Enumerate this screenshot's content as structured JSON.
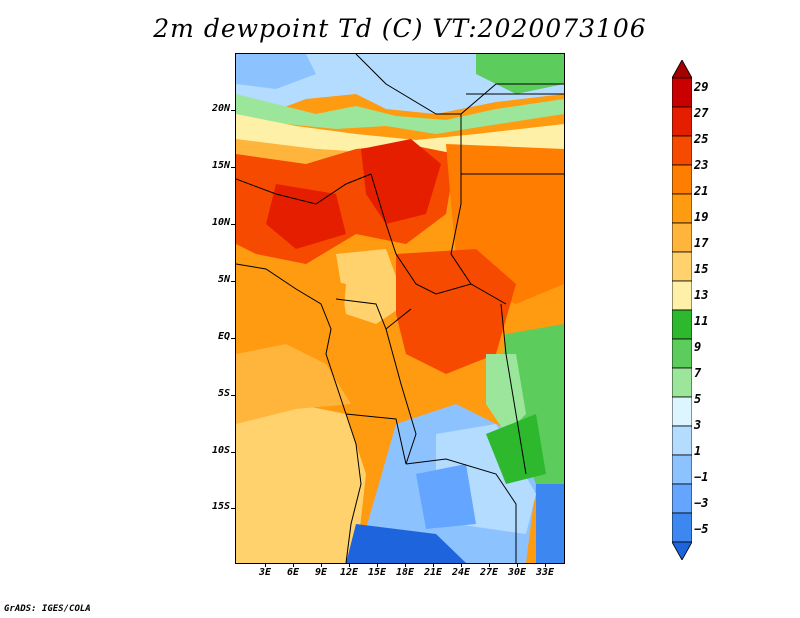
{
  "title": "2m dewpoint Td (C) VT:2020073106",
  "credit": "GrADS: IGES/COLA",
  "map": {
    "region": "Central Africa",
    "lat_labels": [
      "20N",
      "15N",
      "10N",
      "5N",
      "EQ",
      "5S",
      "10S",
      "15S"
    ],
    "lon_labels": [
      "3E",
      "6E",
      "9E",
      "12E",
      "15E",
      "18E",
      "21E",
      "24E",
      "27E",
      "30E",
      "33E"
    ]
  },
  "colorbar": {
    "labels": [
      "29",
      "27",
      "25",
      "23",
      "21",
      "19",
      "17",
      "15",
      "13",
      "11",
      "9",
      "7",
      "5",
      "3",
      "1",
      "−1",
      "−3",
      "−5"
    ],
    "colors_top_to_bottom": [
      "#a50000",
      "#c80000",
      "#e61e00",
      "#f54a00",
      "#ff7d00",
      "#ff9b10",
      "#ffb43c",
      "#ffd26e",
      "#fff0a8",
      "#2eb82e",
      "#5ccc5c",
      "#9be69b",
      "#dcf5ff",
      "#b4dcff",
      "#8cc3ff",
      "#64a5ff",
      "#3c87f0",
      "#1e64dc"
    ]
  }
}
